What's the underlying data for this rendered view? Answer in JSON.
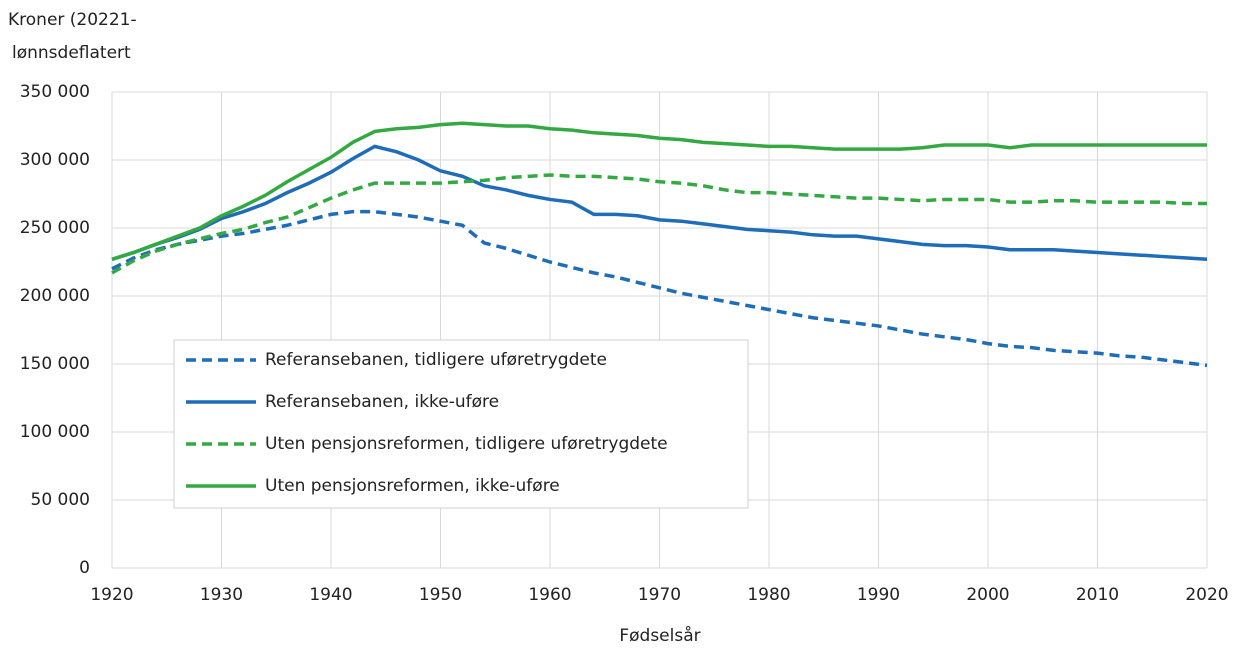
{
  "chart_data": {
    "type": "line",
    "ylabel": [
      "Kroner (20221-",
      "lønnsdeflatert"
    ],
    "xlabel": "Fødselsår",
    "x": [
      1920,
      1922,
      1924,
      1926,
      1928,
      1930,
      1932,
      1934,
      1936,
      1938,
      1940,
      1942,
      1944,
      1946,
      1948,
      1950,
      1952,
      1954,
      1956,
      1958,
      1960,
      1962,
      1964,
      1966,
      1968,
      1970,
      1972,
      1974,
      1976,
      1978,
      1980,
      1982,
      1984,
      1986,
      1988,
      1990,
      1992,
      1994,
      1996,
      1998,
      2000,
      2002,
      2004,
      2006,
      2008,
      2010,
      2012,
      2014,
      2016,
      2018,
      2020
    ],
    "series": [
      {
        "name": "Referansebanen, tidligere uføretrygdete",
        "color": "#1f6cb8",
        "dash": true,
        "values": [
          220000,
          228000,
          234000,
          238000,
          241000,
          244000,
          246000,
          249000,
          252000,
          256000,
          260000,
          262000,
          262000,
          260000,
          258000,
          255000,
          252000,
          239000,
          235000,
          230000,
          225000,
          221000,
          217000,
          214000,
          210000,
          206000,
          202000,
          199000,
          196000,
          193000,
          190000,
          187000,
          184000,
          182000,
          180000,
          178000,
          175000,
          172000,
          170000,
          168000,
          165000,
          163000,
          162000,
          160000,
          159000,
          158000,
          156000,
          155000,
          153000,
          151000,
          149000
        ]
      },
      {
        "name": "Referansebanen, ikke-uføre",
        "color": "#1f6cb8",
        "dash": false,
        "values": [
          227000,
          232000,
          238000,
          243000,
          249000,
          257000,
          262000,
          268000,
          276000,
          283000,
          291000,
          301000,
          310000,
          306000,
          300000,
          292000,
          288000,
          281000,
          278000,
          274000,
          271000,
          269000,
          260000,
          260000,
          259000,
          256000,
          255000,
          253000,
          251000,
          249000,
          248000,
          247000,
          245000,
          244000,
          244000,
          242000,
          240000,
          238000,
          237000,
          237000,
          236000,
          234000,
          234000,
          234000,
          233000,
          232000,
          231000,
          230000,
          229000,
          228000,
          227000
        ]
      },
      {
        "name": "Uten pensjonsreformen, tidligere uføretrygdete",
        "color": "#34a843",
        "dash": true,
        "values": [
          217000,
          226000,
          233000,
          238000,
          242000,
          246000,
          249000,
          254000,
          258000,
          265000,
          272000,
          278000,
          283000,
          283000,
          283000,
          283000,
          284000,
          285000,
          287000,
          288000,
          289000,
          288000,
          288000,
          287000,
          286000,
          284000,
          283000,
          281000,
          278000,
          276000,
          276000,
          275000,
          274000,
          273000,
          272000,
          272000,
          271000,
          270000,
          271000,
          271000,
          271000,
          269000,
          269000,
          270000,
          270000,
          269000,
          269000,
          269000,
          269000,
          268000,
          268000
        ]
      },
      {
        "name": "Uten pensjonsreformen, ikke-uføre",
        "color": "#34a843",
        "dash": false,
        "values": [
          227000,
          232000,
          238000,
          244000,
          250000,
          259000,
          266000,
          274000,
          284000,
          293000,
          302000,
          313000,
          321000,
          323000,
          324000,
          326000,
          327000,
          326000,
          325000,
          325000,
          323000,
          322000,
          320000,
          319000,
          318000,
          316000,
          315000,
          313000,
          312000,
          311000,
          310000,
          310000,
          309000,
          308000,
          308000,
          308000,
          308000,
          309000,
          311000,
          311000,
          311000,
          309000,
          311000,
          311000,
          311000,
          311000,
          311000,
          311000,
          311000,
          311000,
          311000
        ]
      }
    ],
    "xlim": [
      1920,
      2020
    ],
    "xticks": [
      1920,
      1930,
      1940,
      1950,
      1960,
      1970,
      1980,
      1990,
      2000,
      2010,
      2020
    ],
    "ylim": [
      0,
      350000
    ],
    "yticks": [
      0,
      {
        "value": 50000,
        "label": "50 000"
      },
      {
        "value": 100000,
        "label": "100 000"
      },
      {
        "value": 150000,
        "label": "150 000"
      },
      {
        "value": 200000,
        "label": "200 000"
      },
      {
        "value": 250000,
        "label": "250 000"
      },
      {
        "value": 300000,
        "label": "300 000"
      },
      {
        "value": 350000,
        "label": "350 000"
      }
    ],
    "grid": true
  }
}
